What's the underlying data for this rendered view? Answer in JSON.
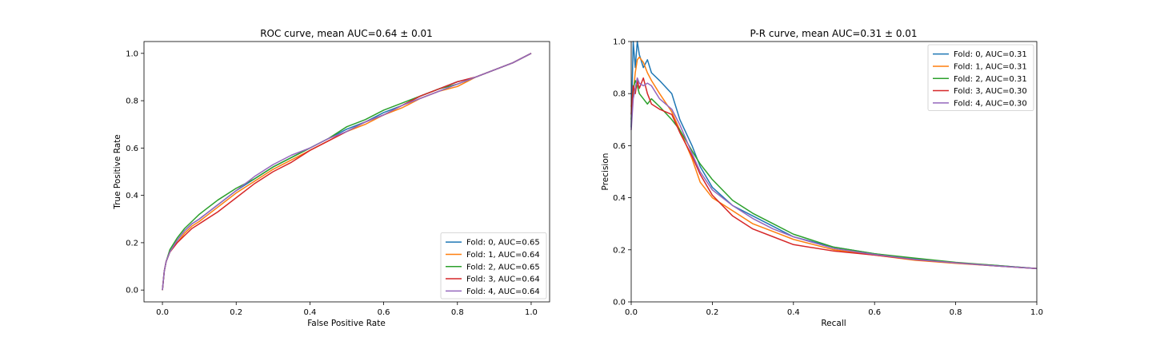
{
  "chart_data": [
    {
      "id": "roc",
      "type": "line",
      "title": "ROC curve, mean AUC=0.64 ± 0.01",
      "xlabel": "False Positive Rate",
      "ylabel": "True Positive Rate",
      "xlim": [
        -0.05,
        1.05
      ],
      "ylim": [
        -0.05,
        1.05
      ],
      "xticks": [
        0.0,
        0.2,
        0.4,
        0.6,
        0.8,
        1.0
      ],
      "yticks": [
        0.0,
        0.2,
        0.4,
        0.6,
        0.8,
        1.0
      ],
      "xtick_labels": [
        "0.0",
        "0.2",
        "0.4",
        "0.6",
        "0.8",
        "1.0"
      ],
      "ytick_labels": [
        "0.0",
        "0.2",
        "0.4",
        "0.6",
        "0.8",
        "1.0"
      ],
      "grid": false,
      "legend_position": "lower-right",
      "series": [
        {
          "name": "Fold: 0, AUC=0.65",
          "color": "#1f77b4",
          "x": [
            0,
            0.005,
            0.01,
            0.02,
            0.04,
            0.06,
            0.08,
            0.1,
            0.15,
            0.2,
            0.25,
            0.3,
            0.35,
            0.4,
            0.45,
            0.5,
            0.55,
            0.6,
            0.65,
            0.7,
            0.75,
            0.8,
            0.85,
            0.9,
            0.95,
            1.0
          ],
          "y": [
            0,
            0.08,
            0.12,
            0.16,
            0.21,
            0.25,
            0.28,
            0.3,
            0.36,
            0.42,
            0.47,
            0.52,
            0.56,
            0.6,
            0.64,
            0.68,
            0.71,
            0.75,
            0.78,
            0.82,
            0.85,
            0.88,
            0.9,
            0.93,
            0.96,
            1.0
          ]
        },
        {
          "name": "Fold: 1, AUC=0.64",
          "color": "#ff7f0e",
          "x": [
            0,
            0.005,
            0.01,
            0.02,
            0.04,
            0.06,
            0.08,
            0.1,
            0.15,
            0.2,
            0.25,
            0.3,
            0.35,
            0.4,
            0.45,
            0.5,
            0.55,
            0.6,
            0.65,
            0.7,
            0.75,
            0.8,
            0.85,
            0.9,
            0.95,
            1.0
          ],
          "y": [
            0,
            0.08,
            0.12,
            0.16,
            0.2,
            0.24,
            0.27,
            0.29,
            0.35,
            0.41,
            0.46,
            0.51,
            0.55,
            0.59,
            0.63,
            0.67,
            0.7,
            0.74,
            0.77,
            0.81,
            0.84,
            0.86,
            0.9,
            0.93,
            0.96,
            1.0
          ]
        },
        {
          "name": "Fold: 2, AUC=0.65",
          "color": "#2ca02c",
          "x": [
            0,
            0.005,
            0.01,
            0.02,
            0.04,
            0.06,
            0.08,
            0.1,
            0.15,
            0.2,
            0.25,
            0.3,
            0.35,
            0.4,
            0.45,
            0.5,
            0.55,
            0.6,
            0.65,
            0.7,
            0.75,
            0.8,
            0.85,
            0.9,
            0.95,
            1.0
          ],
          "y": [
            0,
            0.08,
            0.12,
            0.17,
            0.22,
            0.26,
            0.29,
            0.32,
            0.38,
            0.43,
            0.47,
            0.52,
            0.56,
            0.6,
            0.64,
            0.69,
            0.72,
            0.76,
            0.79,
            0.82,
            0.85,
            0.87,
            0.9,
            0.93,
            0.96,
            1.0
          ]
        },
        {
          "name": "Fold: 3, AUC=0.64",
          "color": "#d62728",
          "x": [
            0,
            0.005,
            0.01,
            0.02,
            0.04,
            0.06,
            0.08,
            0.1,
            0.15,
            0.2,
            0.25,
            0.3,
            0.35,
            0.4,
            0.45,
            0.5,
            0.55,
            0.6,
            0.65,
            0.7,
            0.75,
            0.8,
            0.85,
            0.9,
            0.95,
            1.0
          ],
          "y": [
            0,
            0.08,
            0.12,
            0.16,
            0.2,
            0.23,
            0.26,
            0.28,
            0.33,
            0.39,
            0.45,
            0.5,
            0.54,
            0.59,
            0.63,
            0.67,
            0.71,
            0.74,
            0.78,
            0.82,
            0.85,
            0.88,
            0.9,
            0.93,
            0.96,
            1.0
          ]
        },
        {
          "name": "Fold: 4, AUC=0.64",
          "color": "#9467bd",
          "x": [
            0,
            0.005,
            0.01,
            0.02,
            0.04,
            0.06,
            0.08,
            0.1,
            0.15,
            0.2,
            0.25,
            0.3,
            0.35,
            0.4,
            0.45,
            0.5,
            0.55,
            0.6,
            0.65,
            0.7,
            0.75,
            0.8,
            0.85,
            0.9,
            0.95,
            1.0
          ],
          "y": [
            0,
            0.08,
            0.12,
            0.16,
            0.21,
            0.25,
            0.28,
            0.3,
            0.36,
            0.42,
            0.48,
            0.53,
            0.57,
            0.6,
            0.64,
            0.67,
            0.71,
            0.74,
            0.78,
            0.81,
            0.84,
            0.87,
            0.9,
            0.93,
            0.96,
            1.0
          ]
        }
      ]
    },
    {
      "id": "pr",
      "type": "line",
      "title": "P-R curve, mean AUC=0.31 ± 0.01",
      "xlabel": "Recall",
      "ylabel": "Precision",
      "xlim": [
        0.0,
        1.0
      ],
      "ylim": [
        0.0,
        1.0
      ],
      "xticks": [
        0.0,
        0.2,
        0.4,
        0.6,
        0.8,
        1.0
      ],
      "yticks": [
        0.0,
        0.2,
        0.4,
        0.6,
        0.8,
        1.0
      ],
      "xtick_labels": [
        "0.0",
        "0.2",
        "0.4",
        "0.6",
        "0.8",
        "1.0"
      ],
      "ytick_labels": [
        "0.0",
        "0.2",
        "0.4",
        "0.6",
        "0.8",
        "1.0"
      ],
      "grid": false,
      "legend_position": "upper-right",
      "series": [
        {
          "name": "Fold: 0, AUC=0.31",
          "color": "#1f77b4",
          "x": [
            0.0,
            0.005,
            0.01,
            0.015,
            0.02,
            0.03,
            0.04,
            0.05,
            0.07,
            0.1,
            0.12,
            0.15,
            0.17,
            0.2,
            0.25,
            0.3,
            0.35,
            0.4,
            0.5,
            0.6,
            0.7,
            0.8,
            0.9,
            1.0
          ],
          "y": [
            0.67,
            1.0,
            0.9,
            1.0,
            0.95,
            0.9,
            0.93,
            0.88,
            0.85,
            0.8,
            0.7,
            0.6,
            0.52,
            0.44,
            0.37,
            0.33,
            0.29,
            0.25,
            0.21,
            0.185,
            0.165,
            0.15,
            0.14,
            0.128
          ]
        },
        {
          "name": "Fold: 1, AUC=0.31",
          "color": "#ff7f0e",
          "x": [
            0.0,
            0.005,
            0.01,
            0.015,
            0.02,
            0.03,
            0.04,
            0.05,
            0.07,
            0.1,
            0.12,
            0.15,
            0.17,
            0.2,
            0.25,
            0.3,
            0.35,
            0.4,
            0.5,
            0.6,
            0.7,
            0.8,
            0.9,
            1.0
          ],
          "y": [
            0.75,
            0.8,
            0.88,
            0.93,
            0.94,
            0.92,
            0.88,
            0.85,
            0.8,
            0.73,
            0.66,
            0.55,
            0.46,
            0.4,
            0.35,
            0.3,
            0.27,
            0.24,
            0.2,
            0.18,
            0.16,
            0.148,
            0.138,
            0.128
          ]
        },
        {
          "name": "Fold: 2, AUC=0.31",
          "color": "#2ca02c",
          "x": [
            0.0,
            0.005,
            0.01,
            0.015,
            0.02,
            0.03,
            0.04,
            0.05,
            0.07,
            0.1,
            0.12,
            0.15,
            0.17,
            0.2,
            0.25,
            0.3,
            0.35,
            0.4,
            0.5,
            0.6,
            0.7,
            0.8,
            0.9,
            1.0
          ],
          "y": [
            0.7,
            0.82,
            0.85,
            0.83,
            0.8,
            0.78,
            0.76,
            0.78,
            0.75,
            0.7,
            0.66,
            0.58,
            0.53,
            0.47,
            0.39,
            0.34,
            0.3,
            0.26,
            0.21,
            0.185,
            0.168,
            0.152,
            0.14,
            0.128
          ]
        },
        {
          "name": "Fold: 3, AUC=0.30",
          "color": "#d62728",
          "x": [
            0.0,
            0.005,
            0.01,
            0.015,
            0.02,
            0.03,
            0.04,
            0.05,
            0.07,
            0.1,
            0.12,
            0.15,
            0.17,
            0.2,
            0.25,
            0.3,
            0.35,
            0.4,
            0.5,
            0.6,
            0.7,
            0.8,
            0.9,
            1.0
          ],
          "y": [
            0.72,
            0.83,
            0.8,
            0.85,
            0.82,
            0.86,
            0.8,
            0.76,
            0.74,
            0.72,
            0.65,
            0.56,
            0.49,
            0.41,
            0.33,
            0.28,
            0.25,
            0.22,
            0.195,
            0.18,
            0.162,
            0.15,
            0.138,
            0.128
          ]
        },
        {
          "name": "Fold: 4, AUC=0.30",
          "color": "#9467bd",
          "x": [
            0.0,
            0.005,
            0.01,
            0.015,
            0.02,
            0.03,
            0.04,
            0.05,
            0.07,
            0.1,
            0.12,
            0.15,
            0.17,
            0.2,
            0.25,
            0.3,
            0.35,
            0.4,
            0.5,
            0.6,
            0.7,
            0.8,
            0.9,
            1.0
          ],
          "y": [
            0.66,
            0.78,
            0.82,
            0.86,
            0.84,
            0.83,
            0.84,
            0.83,
            0.78,
            0.74,
            0.68,
            0.57,
            0.5,
            0.43,
            0.37,
            0.32,
            0.28,
            0.25,
            0.205,
            0.182,
            0.163,
            0.15,
            0.138,
            0.128
          ]
        }
      ]
    }
  ]
}
